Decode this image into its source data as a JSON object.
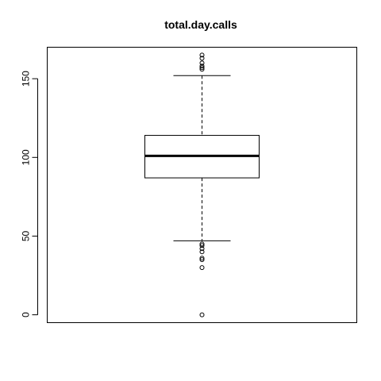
{
  "chart_data": {
    "type": "boxplot",
    "title": "total.day.calls",
    "xlabel": "",
    "ylabel": "",
    "ylim": [
      -5,
      170
    ],
    "yticks": [
      0,
      50,
      100,
      150
    ],
    "box": {
      "lower_whisker": 47,
      "q1": 87,
      "median": 101,
      "q3": 114,
      "upper_whisker": 152
    },
    "outliers": [
      0,
      30,
      35,
      36,
      40,
      42,
      44,
      45,
      156,
      157,
      158,
      160,
      163,
      165
    ],
    "grid": false
  }
}
